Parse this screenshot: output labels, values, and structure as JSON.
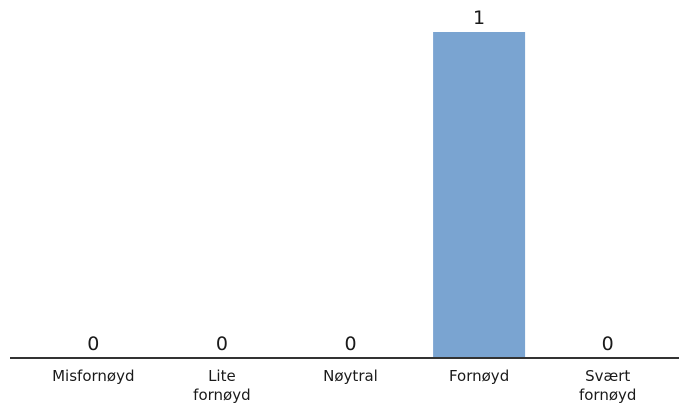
{
  "chart_data": {
    "type": "bar",
    "categories": [
      [
        "Misfornøyd"
      ],
      [
        "Lite",
        "fornøyd"
      ],
      [
        "Nøytral"
      ],
      [
        "Fornøyd"
      ],
      [
        "Svært",
        "fornøyd"
      ]
    ],
    "values": [
      0,
      0,
      0,
      1,
      0
    ],
    "data_labels": [
      "0",
      "0",
      "0",
      "1",
      "0"
    ],
    "ylim": [
      0,
      1
    ],
    "grid": false,
    "bar_color": "#7aa4d1",
    "axis_color": "#333333"
  }
}
